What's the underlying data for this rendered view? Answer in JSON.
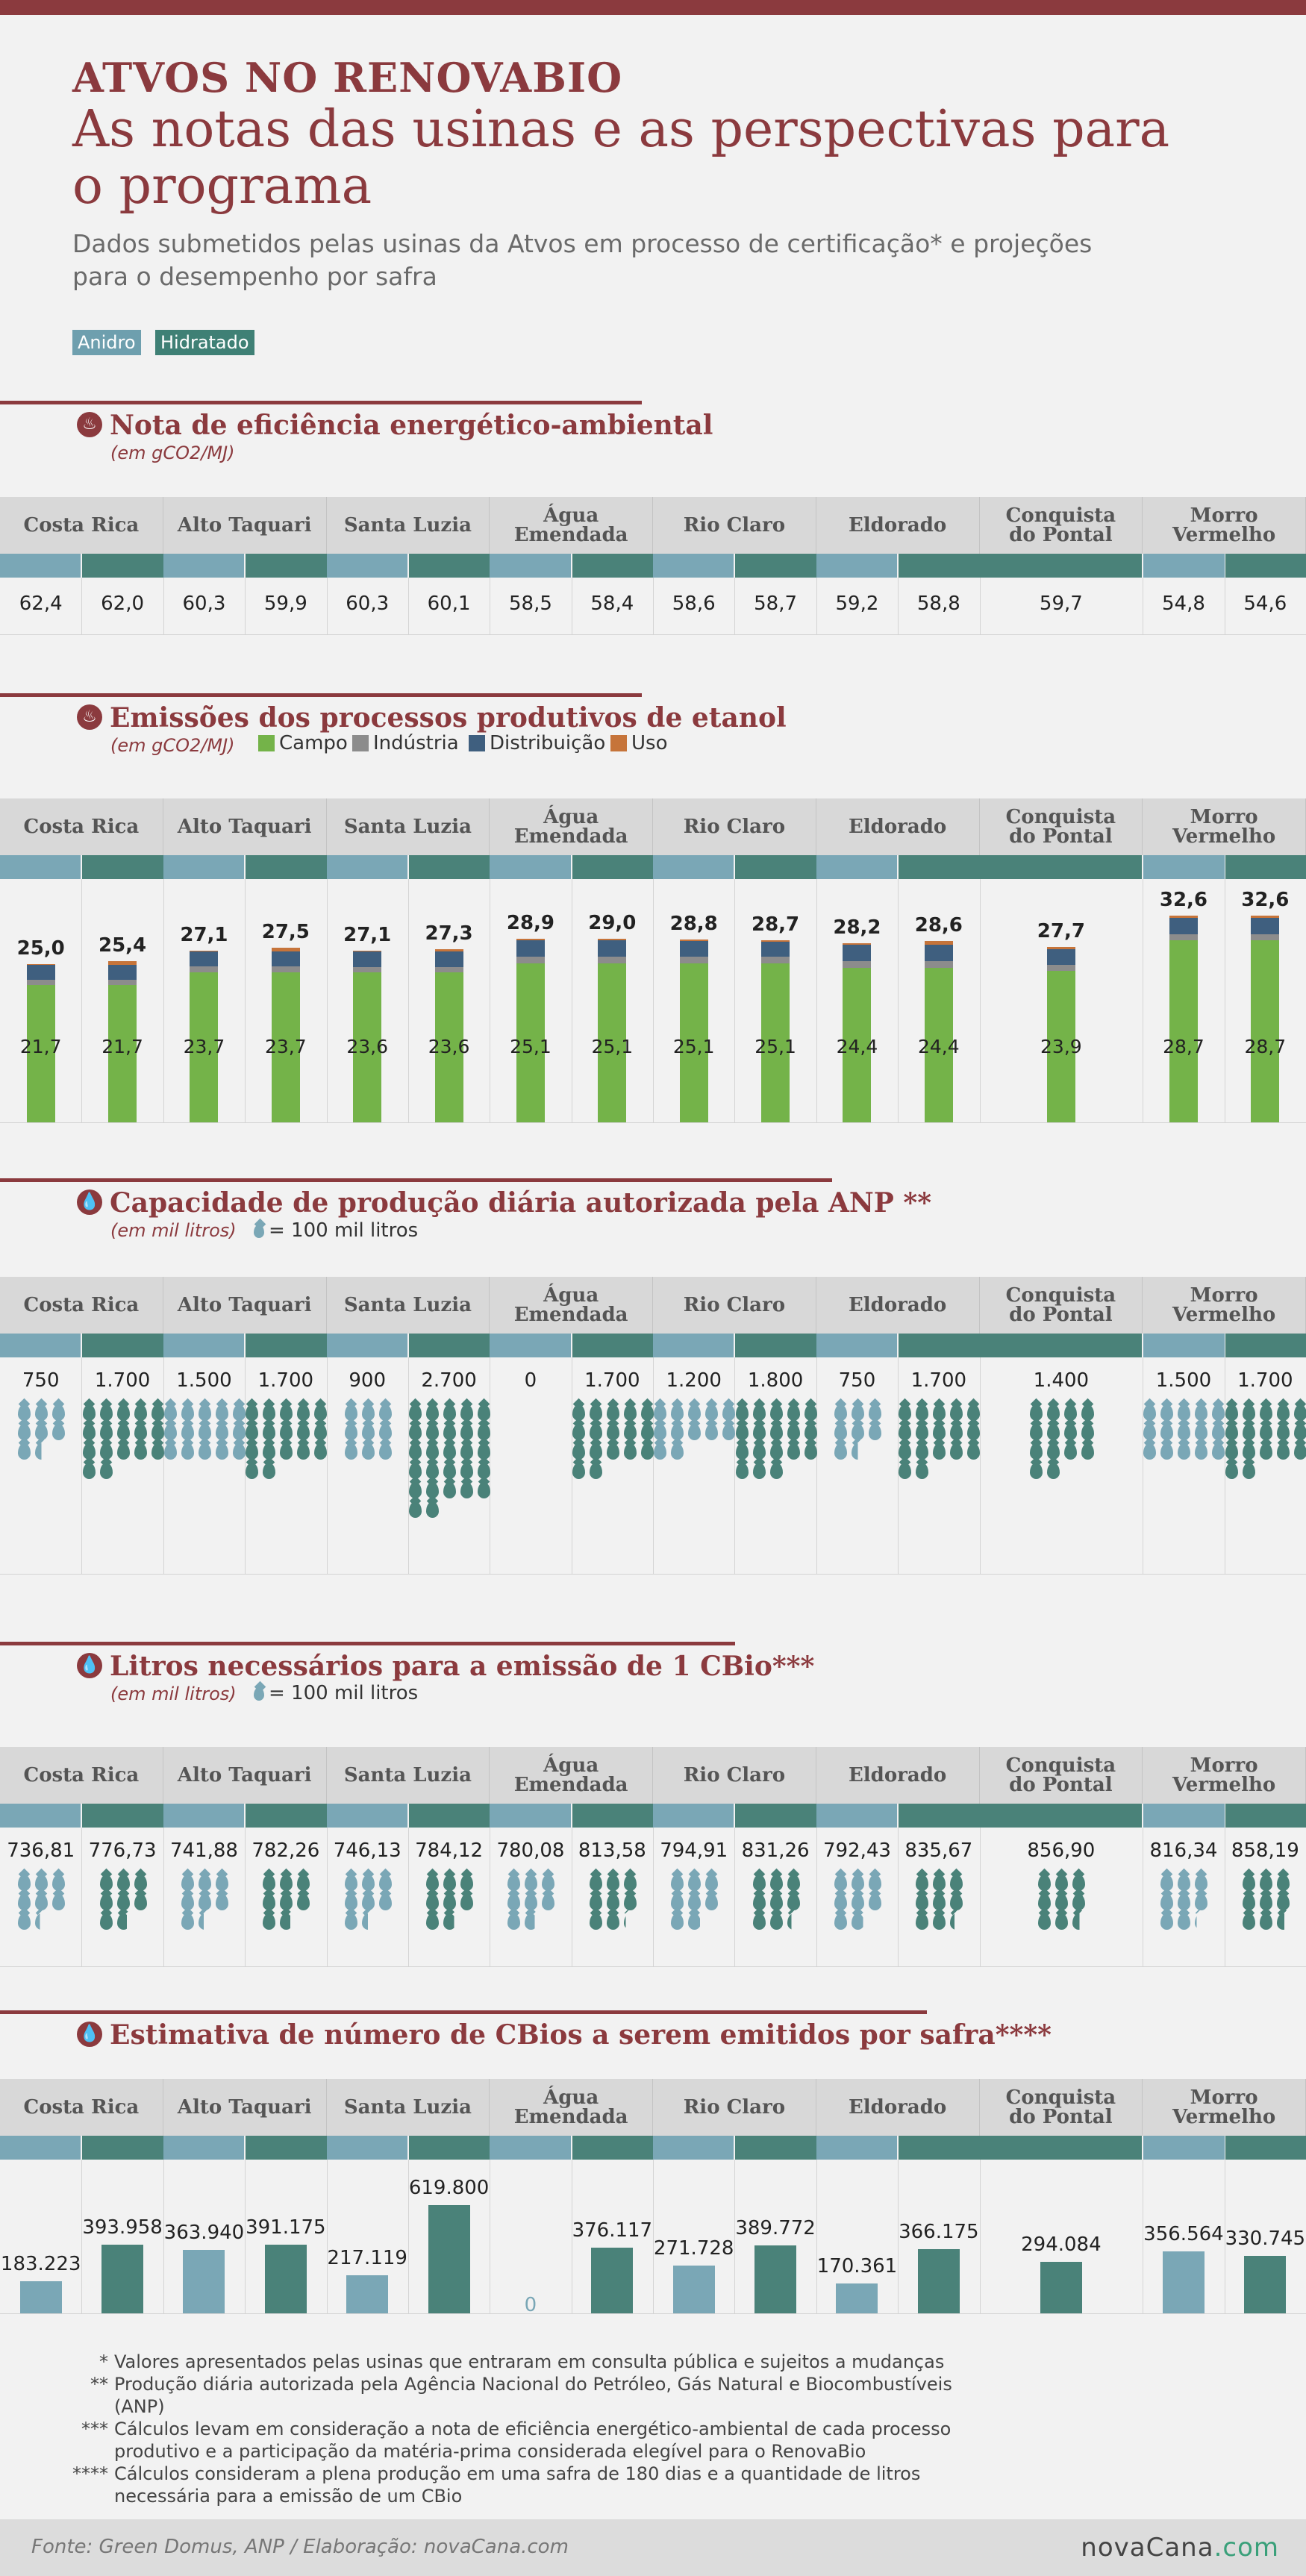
{
  "header": {
    "kicker": "ATVOS NO RENOVABIO",
    "title": "As notas das usinas e as perspectivas para o programa",
    "subtitle": "Dados submetidos pelas usinas da Atvos em processo de certificação* e projeções para o desempenho por safra",
    "legend": [
      {
        "label": "Anidro",
        "color": "#6e9fae"
      },
      {
        "label": "Hidratado",
        "color": "#3f8075"
      }
    ]
  },
  "colors": {
    "anidro": "#7aa7b6",
    "hidratado": "#4a8279",
    "brand": "#8b3a3e",
    "campo": "#74b349",
    "industria": "#8c8c8c",
    "distribuicao": "#3f5f7f",
    "uso": "#c6743a"
  },
  "usinas": [
    {
      "name": "Costa Rica",
      "span": [
        "Anidro",
        "Hidratado"
      ]
    },
    {
      "name": "Alto Taquari",
      "span": [
        "Anidro",
        "Hidratado"
      ]
    },
    {
      "name": "Santa Luzia",
      "span": [
        "Anidro",
        "Hidratado"
      ]
    },
    {
      "name": "Água Emendada",
      "span": [
        "Anidro",
        "Hidratado"
      ]
    },
    {
      "name": "Rio Claro",
      "span": [
        "Anidro",
        "Hidratado"
      ]
    },
    {
      "name": "Eldorado",
      "span": [
        "Anidro",
        "Hidratado"
      ]
    },
    {
      "name": "Conquista do Pontal",
      "span": [
        "Hidratado"
      ]
    },
    {
      "name": "Morro Vermelho",
      "span": [
        "Anidro",
        "Hidratado"
      ]
    }
  ],
  "sections": {
    "nota": {
      "title": "Nota de eficiência energético-ambiental",
      "unit": "(em gCO2/MJ)"
    },
    "emissoes": {
      "title": "Emissões dos processos produtivos de etanol",
      "unit": "(em gCO2/MJ)",
      "legend": [
        {
          "label": "Campo"
        },
        {
          "label": "Indústria"
        },
        {
          "label": "Distribuição"
        },
        {
          "label": "Uso"
        }
      ]
    },
    "capacidade": {
      "title": "Capacidade de produção diária autorizada pela ANP **",
      "unit": "(em mil litros)",
      "drop_legend": "= 100 mil litros"
    },
    "litros": {
      "title": "Litros necessários para a emissão de 1 CBio***",
      "unit": "(em mil litros)",
      "drop_legend": "= 100 mil litros"
    },
    "cbios": {
      "title": "Estimativa de número de CBios a serem emitidos por safra****"
    }
  },
  "chart_data": [
    {
      "type": "table",
      "title": "Nota de eficiência energético-ambiental",
      "unit": "(em gCO2/MJ)",
      "columns": [
        "Costa Rica Anidro",
        "Costa Rica Hidratado",
        "Alto Taquari Anidro",
        "Alto Taquari Hidratado",
        "Santa Luzia Anidro",
        "Santa Luzia Hidratado",
        "Água Emendada Anidro",
        "Água Emendada Hidratado",
        "Rio Claro Anidro",
        "Rio Claro Hidratado",
        "Eldorado Anidro",
        "Eldorado Hidratado",
        "Conquista do Pontal Hidratado",
        "Morro Vermelho Anidro",
        "Morro Vermelho Hidratado"
      ],
      "values": [
        "62,4",
        "62,0",
        "60,3",
        "59,9",
        "60,3",
        "60,1",
        "58,5",
        "58,4",
        "58,6",
        "58,7",
        "59,2",
        "58,8",
        "59,7",
        "54,8",
        "54,6"
      ]
    },
    {
      "type": "bar",
      "title": "Emissões dos processos produtivos de etanol",
      "unit": "(em gCO2/MJ)",
      "stacked": true,
      "totals": [
        "25,0",
        "25,4",
        "27,1",
        "27,5",
        "27,1",
        "27,3",
        "28,9",
        "29,0",
        "28,8",
        "28,7",
        "28,2",
        "28,6",
        "27,7",
        "32,6",
        "32,6"
      ],
      "total_values": [
        25.0,
        25.4,
        27.1,
        27.5,
        27.1,
        27.3,
        28.9,
        29.0,
        28.8,
        28.7,
        28.2,
        28.6,
        27.7,
        32.6,
        32.6
      ],
      "campo_labels": [
        "21,7",
        "21,7",
        "23,7",
        "23,7",
        "23,6",
        "23,6",
        "25,1",
        "25,1",
        "25,1",
        "25,1",
        "24,4",
        "24,4",
        "23,9",
        "28,7",
        "28,7"
      ],
      "series": [
        {
          "name": "Campo",
          "values": [
            21.7,
            21.7,
            23.7,
            23.7,
            23.6,
            23.6,
            25.1,
            25.1,
            25.1,
            25.1,
            24.4,
            24.4,
            23.9,
            28.7,
            28.7
          ]
        },
        {
          "name": "Indústria",
          "values": [
            0.8,
            0.8,
            0.9,
            0.9,
            0.9,
            0.9,
            1.0,
            1.0,
            1.0,
            1.0,
            1.0,
            1.0,
            0.9,
            1.0,
            1.0
          ]
        },
        {
          "name": "Distribuição",
          "values": [
            2.3,
            2.3,
            2.3,
            2.3,
            2.4,
            2.4,
            2.6,
            2.6,
            2.5,
            2.4,
            2.6,
            2.6,
            2.5,
            2.5,
            2.5
          ]
        },
        {
          "name": "Uso",
          "values": [
            0.2,
            0.6,
            0.2,
            0.6,
            0.2,
            0.4,
            0.2,
            0.3,
            0.2,
            0.2,
            0.2,
            0.6,
            0.4,
            0.4,
            0.4
          ]
        }
      ]
    },
    {
      "type": "table",
      "title": "Capacidade de produção diária autorizada pela ANP **",
      "unit": "(em mil litros)",
      "labels": [
        "750",
        "1.700",
        "1.500",
        "1.700",
        "900",
        "2.700",
        "0",
        "1.700",
        "1.200",
        "1.800",
        "750",
        "1.700",
        "1.400",
        "1.500",
        "1.700"
      ],
      "values": [
        750,
        1700,
        1500,
        1700,
        900,
        2700,
        0,
        1700,
        1200,
        1800,
        750,
        1700,
        1400,
        1500,
        1700
      ]
    },
    {
      "type": "table",
      "title": "Litros necessários para a emissão de 1 CBio***",
      "unit": "(em mil litros)",
      "labels": [
        "736,81",
        "776,73",
        "741,88",
        "782,26",
        "746,13",
        "784,12",
        "780,08",
        "813,58",
        "794,91",
        "831,26",
        "792,43",
        "835,67",
        "856,90",
        "816,34",
        "858,19"
      ],
      "values": [
        736.81,
        776.73,
        741.88,
        782.26,
        746.13,
        784.12,
        780.08,
        813.58,
        794.91,
        831.26,
        792.43,
        835.67,
        856.9,
        816.34,
        858.19
      ]
    },
    {
      "type": "bar",
      "title": "Estimativa de número de CBios a serem emitidos por safra****",
      "labels": [
        "183.223",
        "393.958",
        "363.940",
        "391.175",
        "217.119",
        "619.800",
        "0",
        "376.117",
        "271.728",
        "389.772",
        "170.361",
        "366.175",
        "294.084",
        "356.564",
        "330.745"
      ],
      "values": [
        183223,
        393958,
        363940,
        391175,
        217119,
        619800,
        0,
        376117,
        271728,
        389772,
        170361,
        366175,
        294084,
        356564,
        330745
      ]
    }
  ],
  "footnotes": [
    {
      "mark": "*",
      "text": "Valores apresentados pelas usinas que entraram em consulta pública e sujeitos a mudanças"
    },
    {
      "mark": "**",
      "text": "Produção diária autorizada pela Agência Nacional do Petróleo, Gás Natural e Biocombustíveis (ANP)"
    },
    {
      "mark": "***",
      "text": "Cálculos levam em consideração a nota de eficiência energético-ambiental de cada processo produtivo e a participação da matéria-prima considerada elegível para o RenovaBio"
    },
    {
      "mark": "****",
      "text": "Cálculos consideram a plena produção em uma safra de 180 dias e a quantidade de litros necessária para a emissão de um CBio"
    }
  ],
  "footer": {
    "source": "Fonte: Green Domus, ANP / Elaboração: novaCana.com",
    "logo_main": "novaCana",
    "logo_tld": ".com"
  }
}
